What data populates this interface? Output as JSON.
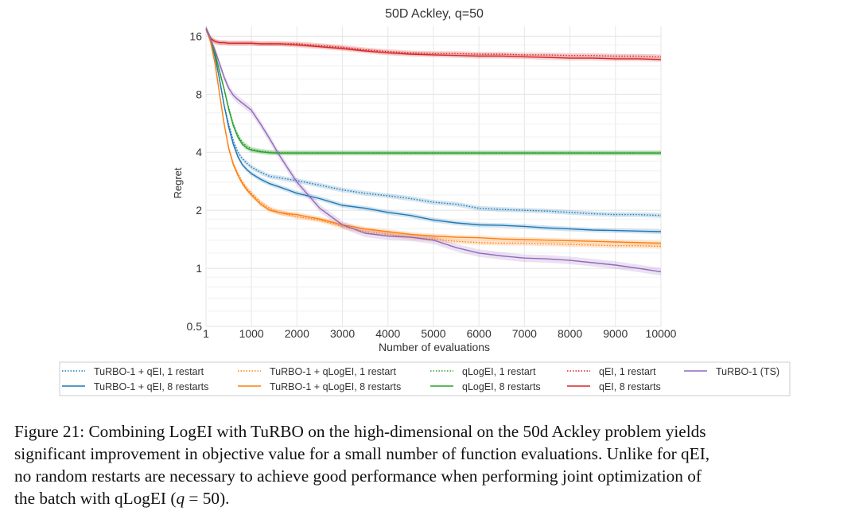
{
  "chart_data": {
    "type": "line",
    "title": "50D Ackley, q=50",
    "xlabel": "Number of evaluations",
    "ylabel": "Regret",
    "yscale": "log2",
    "xlim": [
      1,
      10000
    ],
    "ylim": [
      0.5,
      18
    ],
    "grid": true,
    "legend_position": "bottom",
    "x_tick_labels": [
      "1",
      "1000",
      "2000",
      "3000",
      "4000",
      "5000",
      "6000",
      "7000",
      "8000",
      "9000",
      "10000"
    ],
    "y_tick_labels": [
      "0.5",
      "1",
      "2",
      "4",
      "8",
      "16"
    ],
    "x": [
      1,
      100,
      200,
      300,
      400,
      500,
      600,
      700,
      800,
      900,
      1000,
      1200,
      1400,
      1600,
      1800,
      2000,
      2500,
      3000,
      3500,
      4000,
      4500,
      5000,
      5500,
      6000,
      6500,
      7000,
      7500,
      8000,
      8500,
      9000,
      9500,
      10000
    ],
    "series": [
      {
        "name": "TuRBO-1 + qEI, 1 restart",
        "color": "#1f77b4",
        "style": "dotted",
        "values": [
          17.5,
          15.5,
          12.5,
          9.5,
          7.0,
          5.6,
          4.6,
          4.0,
          3.7,
          3.5,
          3.35,
          3.15,
          3.0,
          2.95,
          2.9,
          2.85,
          2.7,
          2.55,
          2.45,
          2.38,
          2.3,
          2.2,
          2.15,
          2.05,
          2.02,
          2.0,
          1.98,
          1.95,
          1.92,
          1.9,
          1.9,
          1.88
        ]
      },
      {
        "name": "TuRBO-1 + qEI, 8 restarts",
        "color": "#1f77b4",
        "style": "solid",
        "values": [
          17.5,
          15.5,
          12.5,
          9.5,
          7.0,
          5.4,
          4.4,
          3.8,
          3.45,
          3.25,
          3.1,
          2.9,
          2.75,
          2.65,
          2.55,
          2.45,
          2.3,
          2.12,
          2.05,
          1.95,
          1.88,
          1.78,
          1.72,
          1.68,
          1.67,
          1.65,
          1.62,
          1.6,
          1.58,
          1.57,
          1.56,
          1.55
        ]
      },
      {
        "name": "TuRBO-1 + qLogEI, 1 restart",
        "color": "#ff7f0e",
        "style": "dotted",
        "values": [
          17.5,
          15.0,
          11.5,
          8.0,
          5.6,
          4.2,
          3.5,
          3.1,
          2.8,
          2.6,
          2.45,
          2.2,
          2.05,
          1.95,
          1.9,
          1.85,
          1.78,
          1.65,
          1.55,
          1.5,
          1.45,
          1.42,
          1.38,
          1.36,
          1.35,
          1.35,
          1.34,
          1.33,
          1.32,
          1.31,
          1.31,
          1.3
        ]
      },
      {
        "name": "TuRBO-1 + qLogEI, 8 restarts",
        "color": "#ff7f0e",
        "style": "solid",
        "values": [
          17.5,
          15.0,
          11.5,
          8.0,
          5.6,
          4.2,
          3.45,
          3.05,
          2.75,
          2.55,
          2.4,
          2.15,
          2.0,
          1.95,
          1.92,
          1.9,
          1.8,
          1.68,
          1.6,
          1.55,
          1.5,
          1.47,
          1.45,
          1.44,
          1.42,
          1.41,
          1.4,
          1.39,
          1.38,
          1.37,
          1.36,
          1.35
        ]
      },
      {
        "name": "qLogEI, 1 restart",
        "color": "#2ca02c",
        "style": "dotted",
        "values": [
          17.5,
          15.5,
          13.0,
          10.5,
          8.5,
          6.8,
          5.6,
          4.9,
          4.5,
          4.3,
          4.15,
          4.05,
          4.0,
          3.98,
          3.97,
          3.97,
          3.97,
          3.97,
          3.97,
          3.97,
          3.97,
          3.97,
          3.97,
          3.97,
          3.97,
          3.97,
          3.97,
          3.97,
          3.97,
          3.97,
          3.97,
          3.97
        ]
      },
      {
        "name": "qLogEI, 8 restarts",
        "color": "#2ca02c",
        "style": "solid",
        "values": [
          17.5,
          15.5,
          13.0,
          10.5,
          8.5,
          6.7,
          5.5,
          4.8,
          4.4,
          4.2,
          4.1,
          4.02,
          3.98,
          3.96,
          3.96,
          3.96,
          3.96,
          3.96,
          3.96,
          3.96,
          3.96,
          3.96,
          3.96,
          3.96,
          3.96,
          3.96,
          3.96,
          3.96,
          3.96,
          3.96,
          3.96,
          3.96
        ]
      },
      {
        "name": "qEI, 1 restart",
        "color": "#d62728",
        "style": "dotted",
        "values": [
          17.5,
          15.6,
          15.0,
          14.8,
          14.8,
          14.7,
          14.7,
          14.7,
          14.7,
          14.7,
          14.7,
          14.6,
          14.6,
          14.6,
          14.6,
          14.6,
          14.3,
          14.0,
          13.6,
          13.3,
          13.1,
          13.0,
          13.0,
          12.9,
          12.9,
          12.8,
          12.8,
          12.7,
          12.7,
          12.6,
          12.6,
          12.5
        ]
      },
      {
        "name": "qEI, 8 restarts",
        "color": "#d62728",
        "style": "solid",
        "values": [
          17.5,
          15.6,
          15.0,
          14.8,
          14.8,
          14.7,
          14.7,
          14.7,
          14.7,
          14.7,
          14.7,
          14.6,
          14.6,
          14.6,
          14.5,
          14.4,
          14.1,
          13.8,
          13.4,
          13.1,
          12.9,
          12.8,
          12.7,
          12.6,
          12.6,
          12.5,
          12.4,
          12.3,
          12.3,
          12.2,
          12.2,
          12.1
        ]
      },
      {
        "name": "TuRBO-1 (TS)",
        "color": "#9467bd",
        "style": "solid",
        "values": [
          17.5,
          15.5,
          13.5,
          11.5,
          9.8,
          8.6,
          7.9,
          7.5,
          7.2,
          6.9,
          6.6,
          5.6,
          4.7,
          3.9,
          3.3,
          2.8,
          2.05,
          1.68,
          1.52,
          1.47,
          1.45,
          1.4,
          1.28,
          1.2,
          1.16,
          1.13,
          1.12,
          1.1,
          1.07,
          1.04,
          1.0,
          0.96
        ]
      }
    ]
  },
  "legend_columns": [
    [
      0,
      1
    ],
    [
      2,
      3
    ],
    [
      4,
      5
    ],
    [
      6,
      7
    ],
    [
      8
    ]
  ],
  "caption": {
    "line1": "Figure 21: Combining LogEI with TuRBO on the high-dimensional on the 50d Ackley problem yields",
    "line2": "significant improvement in objective value for a small number of function evaluations. Unlike for qEI,",
    "line3": "no random restarts are necessary to achieve good performance when performing joint optimization of",
    "line4_text": "the batch with qLogEI (",
    "line4_math": "q",
    "line4_tail": " = 50)."
  }
}
